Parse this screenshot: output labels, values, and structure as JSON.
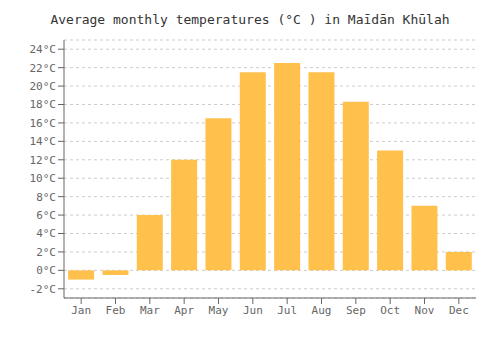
{
  "chart_data": {
    "type": "bar",
    "title": "Average monthly temperatures (°C ) in Maīdān Khūlah",
    "categories": [
      "Jan",
      "Feb",
      "Mar",
      "Apr",
      "May",
      "Jun",
      "Jul",
      "Aug",
      "Sep",
      "Oct",
      "Nov",
      "Dec"
    ],
    "values": [
      -1.0,
      -0.5,
      6.0,
      12.0,
      16.5,
      21.5,
      22.5,
      21.5,
      18.3,
      13.0,
      7.0,
      2.0
    ],
    "color": "#FFC04C",
    "ylim": [
      -3,
      25
    ],
    "yticks": [
      {
        "value": -2,
        "label": "-2°C"
      },
      {
        "value": 0,
        "label": "0°C"
      },
      {
        "value": 2,
        "label": "2°C"
      },
      {
        "value": 4,
        "label": "4°C"
      },
      {
        "value": 6,
        "label": "6°C"
      },
      {
        "value": 8,
        "label": "8°C"
      },
      {
        "value": 10,
        "label": "10°C"
      },
      {
        "value": 12,
        "label": "12°C"
      },
      {
        "value": 14,
        "label": "14°C"
      },
      {
        "value": 16,
        "label": "16°C"
      },
      {
        "value": 18,
        "label": "18°C"
      },
      {
        "value": 20,
        "label": "20°C"
      },
      {
        "value": 22,
        "label": "22°C"
      },
      {
        "value": 24,
        "label": "24°C"
      }
    ],
    "grid": true
  }
}
